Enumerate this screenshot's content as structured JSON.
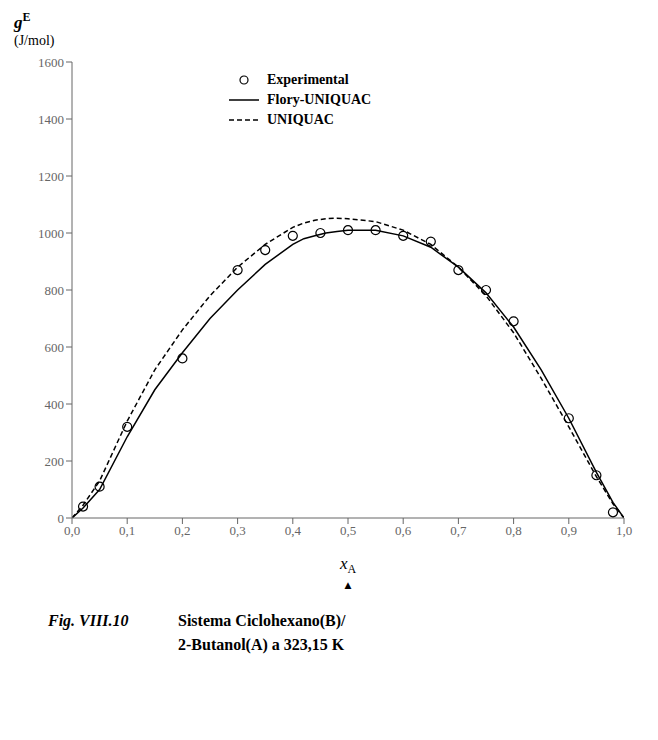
{
  "chart_data": {
    "type": "line",
    "y_label": [
      "g",
      "E",
      "(J/mol)"
    ],
    "x_label": [
      "x",
      "A",
      "▲"
    ],
    "annotations": [
      "Fig. VIII.10",
      "Sistema Ciclohexano(B)/",
      "2-Butanol(A) a 323,15 K"
    ],
    "xlim": [
      0.0,
      1.0
    ],
    "xticks": [
      {
        "value": 0.0,
        "label": "0,0"
      },
      {
        "value": 0.1,
        "label": "0,1"
      },
      {
        "value": 0.2,
        "label": "0,2"
      },
      {
        "value": 0.3,
        "label": "0,3"
      },
      {
        "value": 0.4,
        "label": "0,4"
      },
      {
        "value": 0.5,
        "label": "0,5"
      },
      {
        "value": 0.6,
        "label": "0,6"
      },
      {
        "value": 0.7,
        "label": "0,7"
      },
      {
        "value": 0.8,
        "label": "0,8"
      },
      {
        "value": 0.9,
        "label": "0,9"
      },
      {
        "value": 1.0,
        "label": "1,0"
      }
    ],
    "ylim": [
      0,
      1600
    ],
    "yticks": [
      0,
      200,
      400,
      600,
      800,
      1000,
      1200,
      1400,
      1600
    ],
    "grid": false,
    "legend": "upper left",
    "series": [
      {
        "name": "Experimental",
        "type": "scatter",
        "marker": "circle",
        "color": "#000000",
        "x": [
          0.02,
          0.05,
          0.1,
          0.2,
          0.3,
          0.35,
          0.4,
          0.45,
          0.5,
          0.55,
          0.6,
          0.65,
          0.7,
          0.75,
          0.8,
          0.9,
          0.95,
          0.98
        ],
        "values": [
          40,
          110,
          320,
          560,
          870,
          940,
          990,
          1000,
          1010,
          1010,
          990,
          970,
          870,
          800,
          690,
          350,
          150,
          20
        ]
      },
      {
        "name": "Flory-UNIQUAC",
        "type": "line",
        "line_style": "solid",
        "color": "#000000",
        "x": [
          0.0,
          0.02,
          0.05,
          0.1,
          0.15,
          0.2,
          0.25,
          0.3,
          0.35,
          0.4,
          0.42,
          0.44,
          0.46,
          0.48,
          0.5,
          0.55,
          0.6,
          0.65,
          0.7,
          0.75,
          0.8,
          0.85,
          0.9,
          0.95,
          0.98,
          1.0
        ],
        "values": [
          0,
          35,
          100,
          285,
          450,
          580,
          700,
          800,
          890,
          960,
          980,
          990,
          1000,
          1005,
          1010,
          1010,
          990,
          950,
          880,
          790,
          670,
          520,
          350,
          160,
          55,
          0
        ]
      },
      {
        "name": "UNIQUAC",
        "type": "line",
        "line_style": "dashed",
        "color": "#000000",
        "x": [
          0.0,
          0.02,
          0.05,
          0.1,
          0.15,
          0.2,
          0.25,
          0.3,
          0.35,
          0.4,
          0.42,
          0.44,
          0.46,
          0.48,
          0.5,
          0.55,
          0.6,
          0.65,
          0.7,
          0.75,
          0.8,
          0.85,
          0.9,
          0.95,
          0.98,
          1.0
        ],
        "values": [
          0,
          45,
          130,
          340,
          520,
          660,
          780,
          880,
          960,
          1020,
          1035,
          1045,
          1050,
          1052,
          1050,
          1040,
          1010,
          960,
          880,
          780,
          650,
          490,
          320,
          145,
          50,
          0
        ]
      }
    ]
  }
}
